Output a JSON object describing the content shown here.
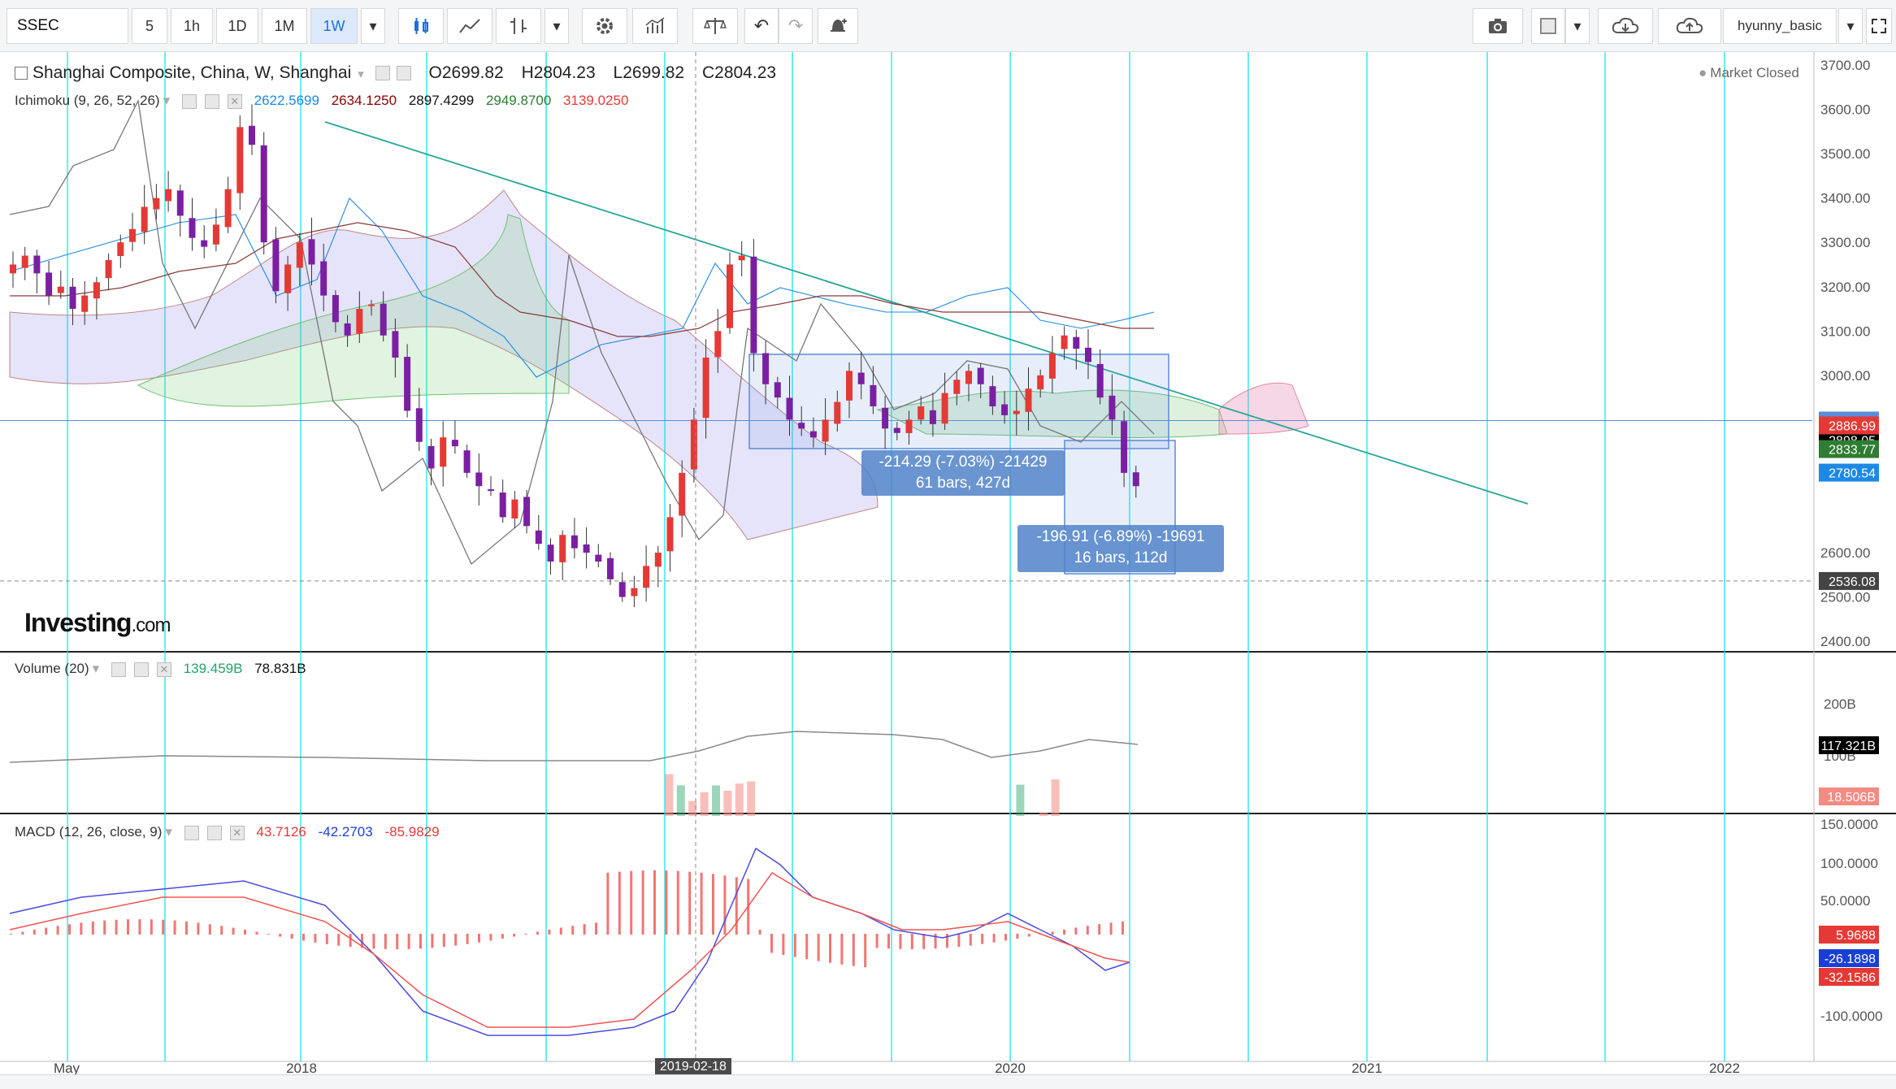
{
  "toolbar": {
    "symbol": "SSEC",
    "intervals": [
      "5",
      "1h",
      "1D",
      "1M",
      "1W"
    ],
    "active_interval": "1W",
    "user": "hyunny_basic"
  },
  "main_legend": {
    "title": "Shanghai Composite, China, W, Shanghai",
    "open_label": "O",
    "open": "2699.82",
    "high_label": "H",
    "high": "2804.23",
    "low_label": "L",
    "low": "2699.82",
    "close_label": "C",
    "close": "2804.23",
    "market_status": "Market Closed"
  },
  "ichimoku": {
    "label": "Ichimoku (9, 26, 52, 26)",
    "v1": "2622.5699",
    "v2": "2634.1250",
    "v3": "2897.4299",
    "v4": "2949.8700",
    "v5": "3139.0250",
    "colors": [
      "#1e88e5",
      "#8b0000",
      "#111111",
      "#2e7d32",
      "#e53935"
    ]
  },
  "volume": {
    "label": "Volume (20)",
    "v1": "139.459B",
    "v2": "78.831B"
  },
  "macd": {
    "label": "MACD (12, 26, close, 9)",
    "v1": "43.7126",
    "v2": "-42.2703",
    "v3": "-85.9829"
  },
  "price_axis": {
    "ticks": [
      "3700.00",
      "3600.00",
      "3500.00",
      "3400.00",
      "3300.00",
      "3200.00",
      "3100.00",
      "3000.00",
      "2600.00",
      "2500.00",
      "2400.00"
    ],
    "tags": [
      {
        "value": "2898.05",
        "color": "#5b8bd9"
      },
      {
        "value": "2898.05",
        "color": "#000000"
      },
      {
        "value": "2886.99",
        "color": "#c62828"
      },
      {
        "value": "2886.99",
        "color": "#e53935"
      },
      {
        "value": "2833.77",
        "color": "#2e7d32"
      },
      {
        "value": "2780.54",
        "color": "#1e88e5"
      },
      {
        "value": "2536.08",
        "color": "#444444"
      }
    ]
  },
  "volume_axis": {
    "ticks": [
      "200B",
      "100B"
    ],
    "tags": [
      {
        "value": "117.321B",
        "color": "#000000"
      },
      {
        "value": "18.506B",
        "color": "#f28b82"
      }
    ]
  },
  "macd_axis": {
    "ticks": [
      "150.0000",
      "100.0000",
      "50.0000",
      "-100.0000"
    ],
    "tags": [
      {
        "value": "5.9688",
        "color": "#e53935"
      },
      {
        "value": "-26.1898",
        "color": "#1a3fd6"
      },
      {
        "value": "-32.1586",
        "color": "#e53935"
      }
    ]
  },
  "time_axis": {
    "labels": [
      "May",
      "2018",
      "2020",
      "2021",
      "2022"
    ],
    "cursor_label": "2019-02-18"
  },
  "measures": [
    {
      "line1": "-214.29 (-7.03%) -21429",
      "line2": "61 bars, 427d"
    },
    {
      "line1": "-196.91 (-6.89%) -19691",
      "line2": "16 bars, 112d"
    }
  ],
  "branding": {
    "logo": "Investing",
    "logo_suffix": ".com"
  },
  "chart_data": {
    "type": "candlestick",
    "title": "Shanghai Composite, China, W, Shanghai",
    "ylim": [
      2400,
      3700
    ],
    "last_close": 2898.05,
    "levels": [
      2898.05,
      2886.99,
      2833.77,
      2780.54,
      2536.08
    ]
  }
}
